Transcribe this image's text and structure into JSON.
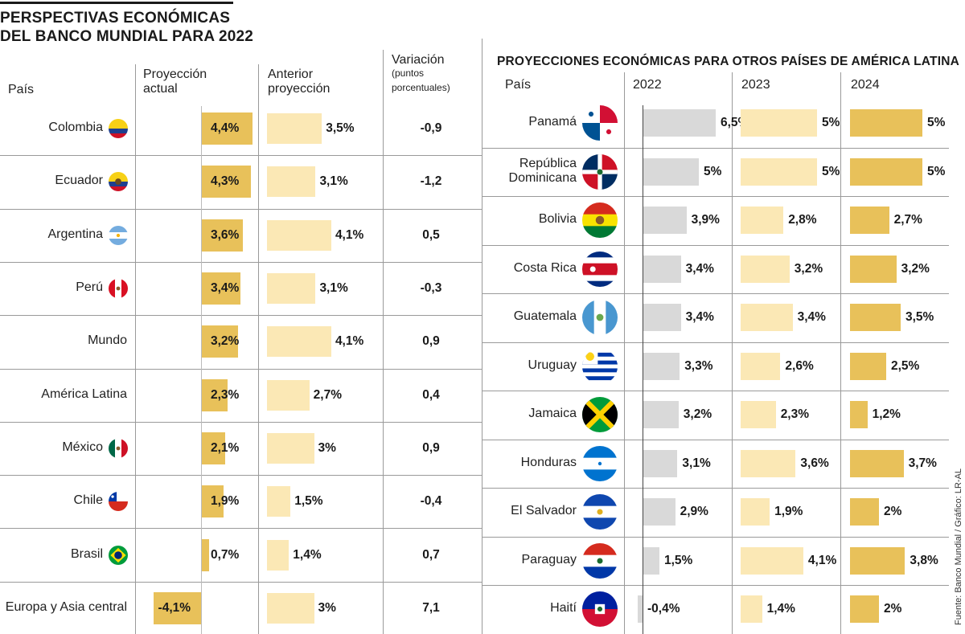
{
  "left": {
    "title_line1": "PERSPECTIVAS ECONÓMICAS",
    "title_line2": "DEL BANCO MUNDIAL PARA 2022",
    "headers": {
      "country": "País",
      "current_1": "Proyección",
      "current_2": "actual",
      "previous_1": "Anterior",
      "previous_2": "proyección",
      "variation_1": "Variación",
      "variation_2": "(puntos",
      "variation_3": "porcentuales)"
    }
  },
  "right": {
    "title": "PROYECCIONES ECONÓMICAS PARA OTROS PAÍSES DE AMÉRICA LATINA",
    "headers": {
      "country": "País",
      "y2022": "2022",
      "y2023": "2023",
      "y2024": "2024"
    }
  },
  "source": "Fuente: Banco Mundial / Gráfico: LR-AL",
  "colors": {
    "current": "#e8c15a",
    "previous": "#fbe8b5",
    "gray": "#d9d9d9",
    "lines": "#9a9a9a"
  },
  "chart_data": [
    {
      "type": "bar",
      "title": "PERSPECTIVAS ECONÓMICAS DEL BANCO MUNDIAL PARA 2022",
      "categories": [
        "Colombia",
        "Ecuador",
        "Argentina",
        "Perú",
        "Mundo",
        "América Latina",
        "México",
        "Chile",
        "Brasil",
        "Europa y Asia central"
      ],
      "flags": [
        "colombia-flag",
        "ecuador-flag",
        "argentina-flag",
        "peru-flag",
        "",
        "",
        "mexico-flag",
        "chile-flag",
        "brasil-flag",
        ""
      ],
      "series": [
        {
          "name": "Proyección actual",
          "values": [
            4.4,
            4.3,
            3.6,
            3.4,
            3.2,
            2.3,
            2.1,
            1.9,
            0.7,
            -4.1
          ],
          "labels": [
            "4,4%",
            "4,3%",
            "3,6%",
            "3,4%",
            "3,2%",
            "2,3%",
            "2,1%",
            "1,9%",
            "0,7%",
            "-4,1%"
          ]
        },
        {
          "name": "Anterior proyección",
          "values": [
            3.5,
            3.1,
            4.1,
            3.1,
            4.1,
            2.7,
            3,
            1.5,
            1.4,
            3
          ],
          "labels": [
            "3,5%",
            "3,1%",
            "4,1%",
            "3,1%",
            "4,1%",
            "2,7%",
            "3%",
            "1,5%",
            "1,4%",
            "3%"
          ]
        },
        {
          "name": "Variación (puntos porcentuales)",
          "values": [
            -0.9,
            -1.2,
            0.5,
            -0.3,
            0.9,
            0.4,
            0.9,
            -0.4,
            0.7,
            7.1
          ],
          "labels": [
            "-0,9",
            "-1,2",
            "0,5",
            "-0,3",
            "0,9",
            "0,4",
            "0,9",
            "-0,4",
            "0,7",
            "7,1"
          ]
        }
      ]
    },
    {
      "type": "bar",
      "title": "PROYECCIONES ECONÓMICAS PARA OTROS PAÍSES DE AMÉRICA LATINA",
      "categories": [
        "Panamá",
        "República Dominicana",
        "Bolivia",
        "Costa Rica",
        "Guatemala",
        "Uruguay",
        "Jamaica",
        "Honduras",
        "El Salvador",
        "Paraguay",
        "Haití"
      ],
      "flags": [
        "panama-flag",
        "dominican-republic-flag",
        "bolivia-flag",
        "costa-rica-flag",
        "guatemala-flag",
        "uruguay-flag",
        "jamaica-flag",
        "honduras-flag",
        "el-salvador-flag",
        "paraguay-flag",
        "haiti-flag"
      ],
      "series": [
        {
          "name": "2022",
          "values": [
            6.5,
            5,
            3.9,
            3.4,
            3.4,
            3.3,
            3.2,
            3.1,
            2.9,
            1.5,
            -0.4
          ],
          "labels": [
            "6,5%",
            "5%",
            "3,9%",
            "3,4%",
            "3,4%",
            "3,3%",
            "3,2%",
            "3,1%",
            "2,9%",
            "1,5%",
            "-0,4%"
          ]
        },
        {
          "name": "2023",
          "values": [
            5,
            5,
            2.8,
            3.2,
            3.4,
            2.6,
            2.3,
            3.6,
            1.9,
            4.1,
            1.4
          ],
          "labels": [
            "5%",
            "5%",
            "2,8%",
            "3,2%",
            "3,4%",
            "2,6%",
            "2,3%",
            "3,6%",
            "1,9%",
            "4,1%",
            "1,4%"
          ]
        },
        {
          "name": "2024",
          "values": [
            5,
            5,
            2.7,
            3.2,
            3.5,
            2.5,
            1.2,
            3.7,
            2,
            3.8,
            2
          ],
          "labels": [
            "5%",
            "5%",
            "2,7%",
            "3,2%",
            "3,5%",
            "2,5%",
            "1,2%",
            "3,7%",
            "2%",
            "3,8%",
            "2%"
          ]
        }
      ]
    }
  ]
}
